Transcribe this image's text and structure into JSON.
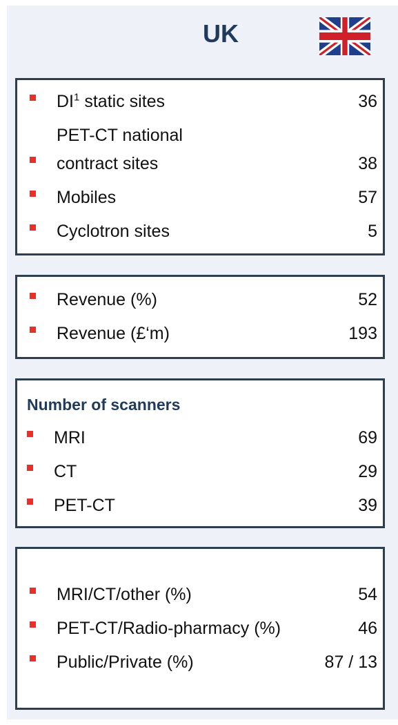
{
  "header": {
    "title": "UK"
  },
  "boxes": [
    {
      "items": [
        {
          "label": "DI",
          "superscript": "1",
          "label_suffix": "static sites",
          "value": 36
        },
        {
          "label": "PET-CT national contract sites",
          "value": 38
        },
        {
          "label": "Mobiles",
          "value": 57
        },
        {
          "label": "Cyclotron sites",
          "value": 5
        }
      ]
    },
    {
      "items": [
        {
          "label": "Revenue  (%)",
          "value": 52
        },
        {
          "label": "Revenue (£‘m)",
          "value": 193
        }
      ]
    },
    {
      "heading": "Number of scanners",
      "items": [
        {
          "label": "MRI",
          "value": 69
        },
        {
          "label": "CT",
          "value": 29
        },
        {
          "label": "PET-CT",
          "value": 39
        }
      ]
    },
    {
      "items": [
        {
          "label": "MRI/CT/other (%)",
          "value": 54
        },
        {
          "label": "PET-CT/Radio-pharmacy (%)",
          "value": 46
        },
        {
          "label": "Public/Private (%)",
          "value": "87 / 13"
        }
      ]
    }
  ]
}
